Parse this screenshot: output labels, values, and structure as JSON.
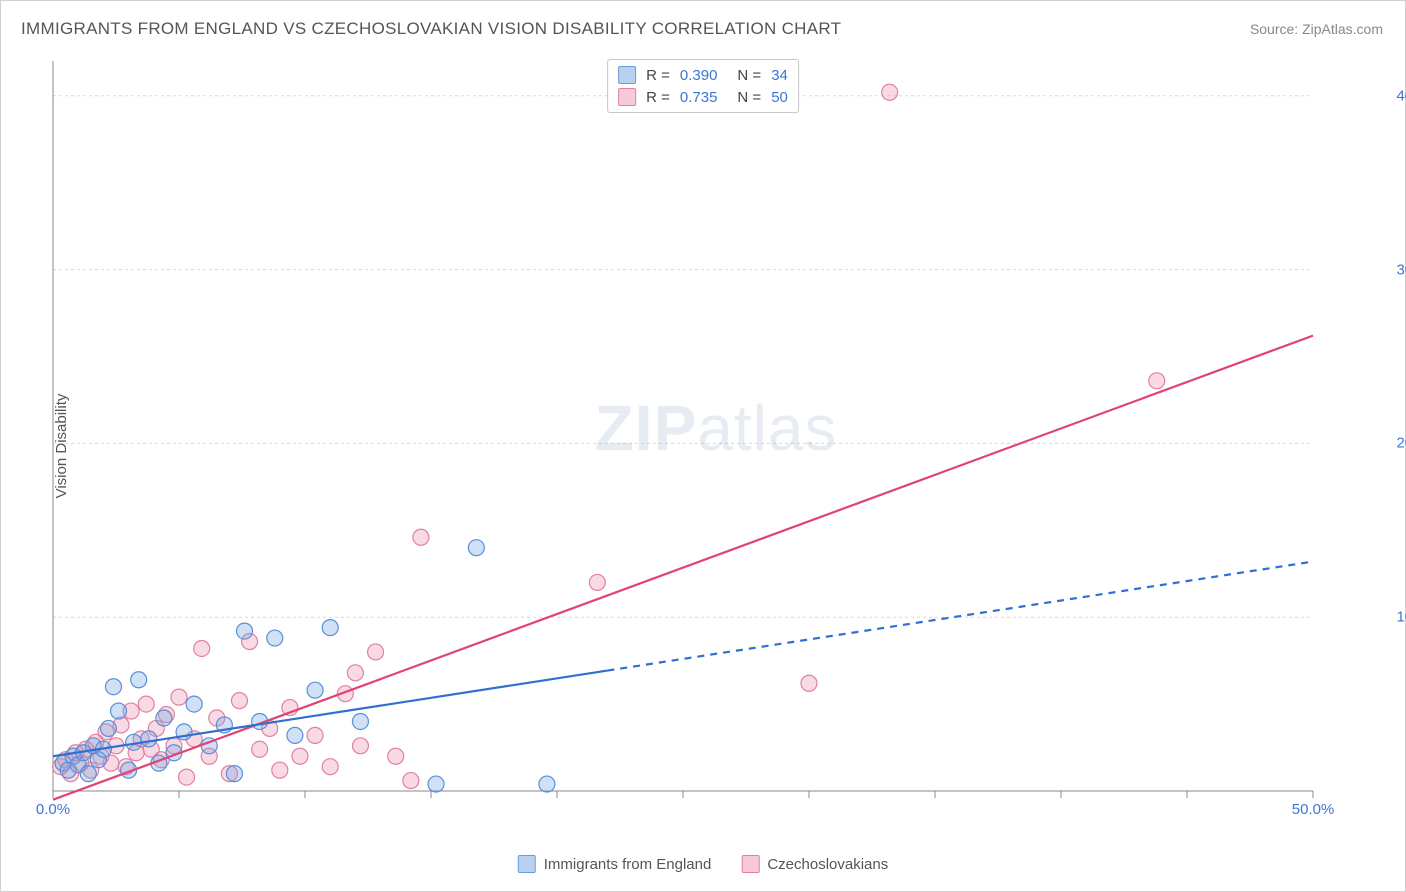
{
  "title": "IMMIGRANTS FROM ENGLAND VS CZECHOSLOVAKIAN VISION DISABILITY CORRELATION CHART",
  "source_prefix": "Source: ",
  "source_name": "ZipAtlas.com",
  "y_axis_label": "Vision Disability",
  "watermark": {
    "bold": "ZIP",
    "rest": "atlas"
  },
  "legend_top": [
    {
      "swatch_fill": "#b8d1ef",
      "swatch_stroke": "#6a9be0",
      "r_label": "R =",
      "r_value": "0.390",
      "n_label": "N =",
      "n_value": "34"
    },
    {
      "swatch_fill": "#f8cad7",
      "swatch_stroke": "#e37fa0",
      "r_label": "R =",
      "r_value": "0.735",
      "n_label": "N =",
      "n_value": "50"
    }
  ],
  "legend_bottom": [
    {
      "swatch_fill": "#b8d1ef",
      "swatch_stroke": "#6a9be0",
      "label": "Immigrants from England"
    },
    {
      "swatch_fill": "#f8cad7",
      "swatch_stroke": "#e37fa0",
      "label": "Czechoslovakians"
    }
  ],
  "chart": {
    "type": "scatter",
    "xlim": [
      0,
      50
    ],
    "ylim": [
      0,
      42
    ],
    "x_ticks": [
      0,
      5,
      10,
      15,
      20,
      25,
      30,
      35,
      40,
      45,
      50
    ],
    "x_tick_labels": {
      "0": "0.0%",
      "50": "50.0%"
    },
    "y_ticks": [
      10,
      20,
      30,
      40
    ],
    "y_tick_labels": {
      "10": "10.0%",
      "20": "20.0%",
      "30": "30.0%",
      "40": "40.0%"
    },
    "grid_color": "#d8d8d8",
    "axis_color": "#888888",
    "background_color": "#ffffff",
    "marker_radius": 8,
    "marker_stroke_width": 1.2,
    "series": [
      {
        "name": "england",
        "fill": "rgba(120,165,225,0.35)",
        "stroke": "#5a8fd8",
        "trend": {
          "color": "#2f6fd0",
          "width": 2.2,
          "solid_to_x": 22,
          "y_at_0": 2.0,
          "y_at_50": 13.2
        },
        "points": [
          [
            0.4,
            1.6
          ],
          [
            0.6,
            1.2
          ],
          [
            0.8,
            2.0
          ],
          [
            1.0,
            1.5
          ],
          [
            1.2,
            2.2
          ],
          [
            1.4,
            1.0
          ],
          [
            1.6,
            2.6
          ],
          [
            1.8,
            1.8
          ],
          [
            2.0,
            2.4
          ],
          [
            2.2,
            3.6
          ],
          [
            2.4,
            6.0
          ],
          [
            2.6,
            4.6
          ],
          [
            3.0,
            1.2
          ],
          [
            3.2,
            2.8
          ],
          [
            3.4,
            6.4
          ],
          [
            3.8,
            3.0
          ],
          [
            4.2,
            1.6
          ],
          [
            4.4,
            4.2
          ],
          [
            4.8,
            2.2
          ],
          [
            5.2,
            3.4
          ],
          [
            5.6,
            5.0
          ],
          [
            6.2,
            2.6
          ],
          [
            6.8,
            3.8
          ],
          [
            7.2,
            1.0
          ],
          [
            7.6,
            9.2
          ],
          [
            8.2,
            4.0
          ],
          [
            8.8,
            8.8
          ],
          [
            9.6,
            3.2
          ],
          [
            10.4,
            5.8
          ],
          [
            11.0,
            9.4
          ],
          [
            12.2,
            4.0
          ],
          [
            15.2,
            0.4
          ],
          [
            16.8,
            14.0
          ],
          [
            19.6,
            0.4
          ]
        ]
      },
      {
        "name": "czech",
        "fill": "rgba(235,140,170,0.32)",
        "stroke": "#e37fa0",
        "trend": {
          "color": "#e0446f",
          "width": 2.2,
          "solid_to_x": 50,
          "y_at_0": -0.5,
          "y_at_50": 26.2
        },
        "points": [
          [
            0.3,
            1.4
          ],
          [
            0.5,
            1.8
          ],
          [
            0.7,
            1.0
          ],
          [
            0.9,
            2.2
          ],
          [
            1.1,
            1.6
          ],
          [
            1.3,
            2.4
          ],
          [
            1.5,
            1.2
          ],
          [
            1.7,
            2.8
          ],
          [
            1.9,
            2.0
          ],
          [
            2.1,
            3.4
          ],
          [
            2.3,
            1.6
          ],
          [
            2.5,
            2.6
          ],
          [
            2.7,
            3.8
          ],
          [
            2.9,
            1.4
          ],
          [
            3.1,
            4.6
          ],
          [
            3.3,
            2.2
          ],
          [
            3.5,
            3.0
          ],
          [
            3.7,
            5.0
          ],
          [
            3.9,
            2.4
          ],
          [
            4.1,
            3.6
          ],
          [
            4.3,
            1.8
          ],
          [
            4.5,
            4.4
          ],
          [
            4.8,
            2.6
          ],
          [
            5.0,
            5.4
          ],
          [
            5.3,
            0.8
          ],
          [
            5.6,
            3.0
          ],
          [
            5.9,
            8.2
          ],
          [
            6.2,
            2.0
          ],
          [
            6.5,
            4.2
          ],
          [
            7.0,
            1.0
          ],
          [
            7.4,
            5.2
          ],
          [
            7.8,
            8.6
          ],
          [
            8.2,
            2.4
          ],
          [
            8.6,
            3.6
          ],
          [
            9.0,
            1.2
          ],
          [
            9.4,
            4.8
          ],
          [
            9.8,
            2.0
          ],
          [
            10.4,
            3.2
          ],
          [
            11.0,
            1.4
          ],
          [
            11.6,
            5.6
          ],
          [
            12.2,
            2.6
          ],
          [
            12.8,
            8.0
          ],
          [
            13.6,
            2.0
          ],
          [
            14.2,
            0.6
          ],
          [
            14.6,
            14.6
          ],
          [
            21.6,
            12.0
          ],
          [
            30.0,
            6.2
          ],
          [
            33.2,
            40.2
          ],
          [
            43.8,
            23.6
          ],
          [
            12.0,
            6.8
          ]
        ]
      }
    ]
  }
}
